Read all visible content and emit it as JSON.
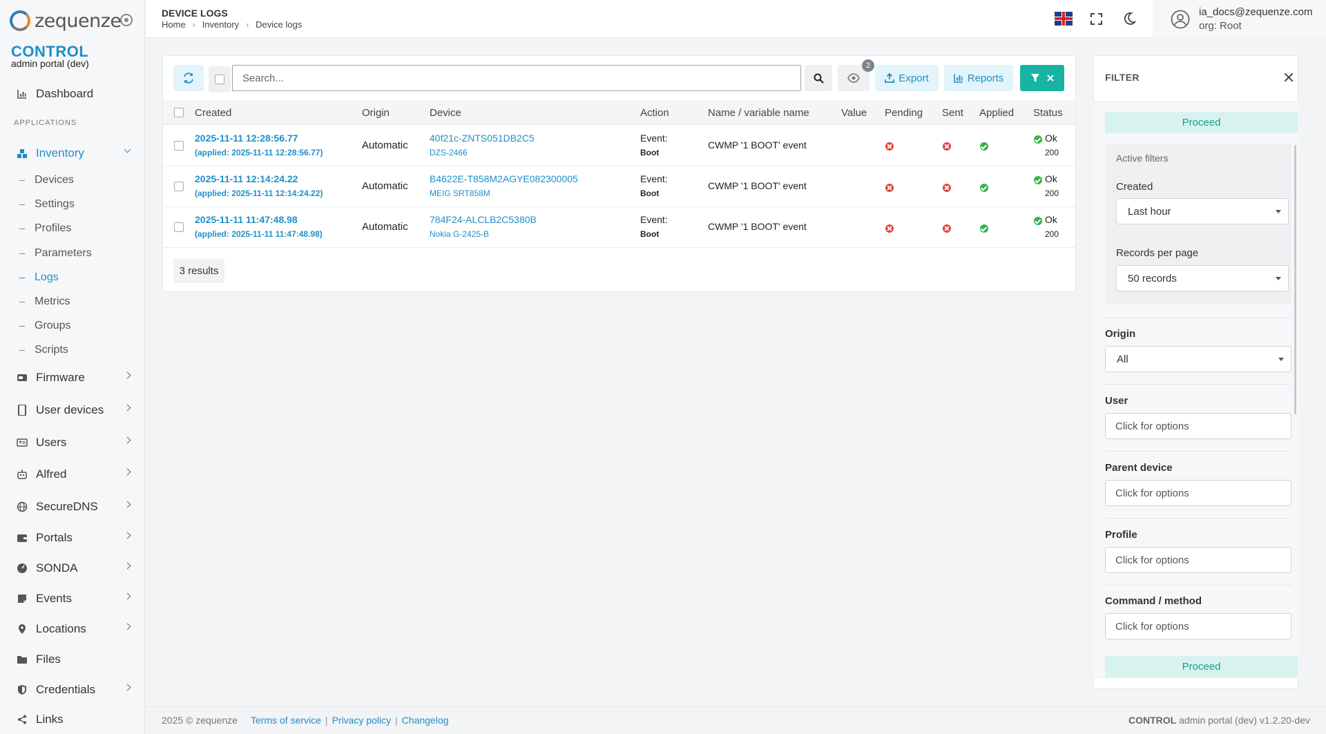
{
  "sidebar": {
    "logo_text": "zequenze",
    "brand": "CONTROL",
    "brand_sub": "admin portal (dev)",
    "dashboard": "Dashboard",
    "section_label": "APPLICATIONS",
    "inventory": "Inventory",
    "inventory_sub": [
      "Devices",
      "Settings",
      "Profiles",
      "Parameters",
      "Logs",
      "Metrics",
      "Groups",
      "Scripts"
    ],
    "items": [
      "Firmware",
      "User devices",
      "Users",
      "Alfred",
      "SecureDNS",
      "Portals",
      "SONDA",
      "Events",
      "Locations",
      "Files",
      "Credentials",
      "Links"
    ]
  },
  "header": {
    "title": "DEVICE LOGS",
    "breadcrumb": [
      "Home",
      "Inventory",
      "Device logs"
    ],
    "user_email": "ia_docs@zequenze.com",
    "user_org": "org: Root"
  },
  "toolbar": {
    "search_placeholder": "Search...",
    "eye_badge": "2",
    "export": "Export",
    "reports": "Reports"
  },
  "table": {
    "headers": [
      "Created",
      "Origin",
      "Device",
      "Action",
      "Name / variable name",
      "Value",
      "Pending",
      "Sent",
      "Applied",
      "Status"
    ],
    "rows": [
      {
        "created": "2025-11-11 12:28:56.77",
        "applied": "(applied: 2025-11-11 12:28:56.77)",
        "origin": "Automatic",
        "device": "40f21c-ZNTS051DB2C5",
        "device_model": "DZS-2466",
        "action": "Event:",
        "action_sub": "Boot",
        "name": "CWMP '1 BOOT' event",
        "value": "",
        "pending": "error",
        "sent": "error",
        "applied_state": "ok",
        "status": "Ok",
        "status_code": "200"
      },
      {
        "created": "2025-11-11 12:14:24.22",
        "applied": "(applied: 2025-11-11 12:14:24.22)",
        "origin": "Automatic",
        "device": "B4622E-T858M2AGYE082300005",
        "device_model": "MEIG SRT858M",
        "action": "Event:",
        "action_sub": "Boot",
        "name": "CWMP '1 BOOT' event",
        "value": "",
        "pending": "error",
        "sent": "error",
        "applied_state": "ok",
        "status": "Ok",
        "status_code": "200"
      },
      {
        "created": "2025-11-11 11:47:48.98",
        "applied": "(applied: 2025-11-11 11:47:48.98)",
        "origin": "Automatic",
        "device": "784F24-ALCLB2C5380B",
        "device_model": "Nokia G-2425-B",
        "action": "Event:",
        "action_sub": "Boot",
        "name": "CWMP '1 BOOT' event",
        "value": "",
        "pending": "error",
        "sent": "error",
        "applied_state": "ok",
        "status": "Ok",
        "status_code": "200"
      }
    ],
    "results": "3 results"
  },
  "filter": {
    "title": "FILTER",
    "proceed": "Proceed",
    "active_filters": "Active filters",
    "created_label": "Created",
    "created_value": "Last hour",
    "records_label": "Records per page",
    "records_value": "50 records",
    "origin_label": "Origin",
    "origin_value": "All",
    "user_label": "User",
    "parent_label": "Parent device",
    "profile_label": "Profile",
    "command_label": "Command / method",
    "click_options": "Click for options"
  },
  "footer": {
    "copy": "2025 © zequenze",
    "terms": "Terms of service",
    "privacy": "Privacy policy",
    "changelog": "Changelog",
    "version_brand": "CONTROL",
    "version_rest": "admin portal (dev) v1.2.20-dev"
  },
  "colors": {
    "accent": "#1f8fc7",
    "teal": "#17b4a3",
    "error": "#e04545",
    "ok": "#34b34a"
  }
}
